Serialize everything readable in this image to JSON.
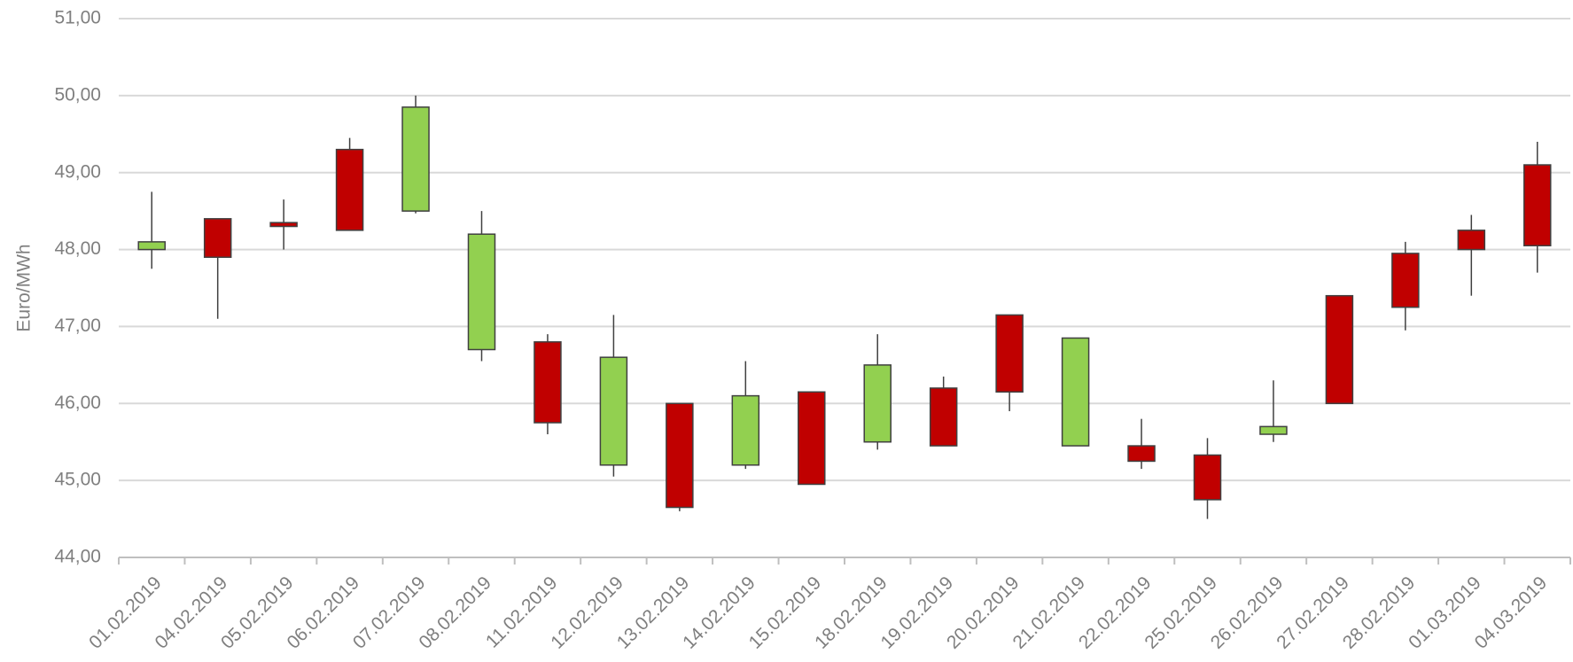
{
  "chart_data": {
    "type": "candlestick",
    "y_label": "Euro/MWh",
    "categories": [
      "01.02.2019",
      "04.02.2019",
      "05.02.2019",
      "06.02.2019",
      "07.02.2019",
      "08.02.2019",
      "11.02.2019",
      "12.02.2019",
      "13.02.2019",
      "14.02.2019",
      "15.02.2019",
      "18.02.2019",
      "19.02.2019",
      "20.02.2019",
      "21.02.2019",
      "22.02.2019",
      "25.02.2019",
      "26.02.2019",
      "27.02.2019",
      "28.02.2019",
      "01.03.2019",
      "04.03.2019"
    ],
    "open": [
      48.0,
      48.4,
      48.35,
      49.3,
      48.5,
      46.7,
      46.8,
      45.2,
      46.0,
      45.2,
      46.15,
      45.5,
      46.2,
      47.15,
      45.45,
      45.45,
      45.33,
      45.6,
      47.4,
      47.95,
      48.25,
      49.1
    ],
    "high": [
      48.75,
      48.4,
      48.65,
      49.45,
      50.0,
      48.5,
      46.9,
      47.15,
      46.0,
      46.55,
      46.15,
      46.9,
      46.35,
      47.15,
      46.85,
      45.8,
      45.55,
      46.3,
      47.4,
      48.1,
      48.45,
      49.4
    ],
    "low": [
      47.75,
      47.1,
      48.0,
      48.25,
      48.47,
      46.55,
      45.6,
      45.05,
      44.6,
      45.15,
      44.95,
      45.4,
      45.45,
      45.9,
      45.45,
      45.15,
      44.5,
      45.5,
      46.0,
      46.95,
      47.4,
      47.7
    ],
    "close": [
      48.1,
      47.9,
      48.3,
      48.25,
      49.85,
      48.2,
      45.75,
      46.6,
      44.65,
      46.1,
      44.95,
      46.5,
      45.45,
      46.15,
      46.85,
      45.25,
      44.75,
      45.7,
      46.0,
      47.25,
      48.0,
      48.05
    ],
    "up_color": "#92d050",
    "down_color": "#c00000",
    "ylim": [
      44,
      51
    ],
    "yticks": [
      {
        "value": 44,
        "label": "44,00"
      },
      {
        "value": 45,
        "label": "45,00"
      },
      {
        "value": 46,
        "label": "46,00"
      },
      {
        "value": 47,
        "label": "47,00"
      },
      {
        "value": 48,
        "label": "48,00"
      },
      {
        "value": 49,
        "label": "49,00"
      },
      {
        "value": 50,
        "label": "50,00"
      },
      {
        "value": 51,
        "label": "51,00"
      }
    ],
    "grid": true
  }
}
